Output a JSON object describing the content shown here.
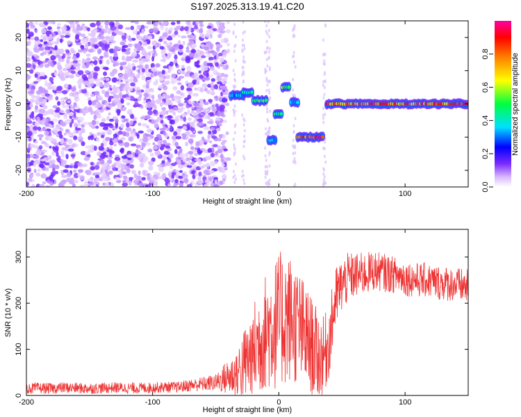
{
  "title": "S197.2025.313.19.41.C20",
  "chart_data": [
    {
      "type": "heatmap",
      "title": "S197.2025.313.19.41.C20",
      "xlabel": "Height of straight line (km)",
      "ylabel": "Frequency (Hz)",
      "xlim": [
        -200,
        150
      ],
      "ylim": [
        -25,
        25
      ],
      "xticks": [
        -200,
        -100,
        0,
        100
      ],
      "yticks": [
        -20,
        -10,
        0,
        10,
        20
      ],
      "colorbar": {
        "label": "Normalized spectral amplitude",
        "range": [
          0,
          1
        ],
        "ticks": [
          0.0,
          0.2,
          0.4,
          0.6,
          0.8
        ],
        "colors": [
          "#ffffff",
          "#d9b8ff",
          "#7a2bff",
          "#0000ff",
          "#00e0ff",
          "#00ff40",
          "#ffff00",
          "#ff8000",
          "#ff0000",
          "#ff00a0"
        ]
      },
      "noise_region": {
        "x": [
          -200,
          -40
        ],
        "intensity": 0.12
      },
      "features": [
        {
          "x": [
            -38,
            -28
          ],
          "freq": 2.5,
          "amp": 0.35
        },
        {
          "x": [
            -28,
            -20
          ],
          "freq": 3.5,
          "amp": 0.45
        },
        {
          "x": [
            -20,
            -10
          ],
          "freq": 1.0,
          "amp": 0.55
        },
        {
          "x": [
            -8,
            -3
          ],
          "freq": -11.0,
          "amp": 0.4
        },
        {
          "x": [
            -3,
            3
          ],
          "freq": -3.0,
          "amp": 0.5
        },
        {
          "x": [
            3,
            9
          ],
          "freq": 5.0,
          "amp": 0.6
        },
        {
          "x": [
            10,
            15
          ],
          "freq": 0.5,
          "amp": 0.4
        },
        {
          "x": [
            15,
            36
          ],
          "freq": -10.0,
          "amp": 0.95
        },
        {
          "x": [
            38,
            150
          ],
          "freq": 0.0,
          "amp": 0.9
        }
      ]
    },
    {
      "type": "line",
      "xlabel": "Height of straight line (km)",
      "ylabel": "SNR (10 * v/v)",
      "xlim": [
        -200,
        150
      ],
      "ylim": [
        0,
        360
      ],
      "xticks": [
        -200,
        -100,
        0,
        100
      ],
      "yticks": [
        0,
        100,
        200,
        300
      ],
      "color": "#ee3333",
      "x": [
        -200,
        -190,
        -180,
        -170,
        -160,
        -150,
        -140,
        -130,
        -120,
        -110,
        -100,
        -90,
        -80,
        -70,
        -60,
        -50,
        -45,
        -40,
        -35,
        -30,
        -25,
        -20,
        -15,
        -10,
        -5,
        0,
        5,
        10,
        15,
        20,
        25,
        30,
        35,
        40,
        45,
        50,
        55,
        60,
        65,
        70,
        75,
        80,
        85,
        90,
        95,
        100,
        105,
        110,
        115,
        120,
        125,
        130,
        135,
        140,
        145,
        150
      ],
      "values": [
        15,
        16,
        15,
        17,
        16,
        15,
        16,
        17,
        16,
        16,
        17,
        18,
        18,
        22,
        25,
        28,
        35,
        40,
        45,
        60,
        75,
        95,
        120,
        140,
        150,
        160,
        170,
        165,
        150,
        130,
        110,
        90,
        80,
        120,
        210,
        240,
        255,
        260,
        262,
        265,
        270,
        268,
        265,
        262,
        260,
        255,
        252,
        250,
        250,
        248,
        245,
        243,
        242,
        240,
        238,
        235
      ],
      "noise_amplitude": [
        12,
        12,
        12,
        12,
        12,
        12,
        12,
        12,
        12,
        12,
        12,
        12,
        12,
        14,
        16,
        18,
        30,
        40,
        50,
        70,
        90,
        110,
        120,
        130,
        140,
        150,
        150,
        140,
        130,
        120,
        110,
        100,
        90,
        80,
        70,
        60,
        55,
        50,
        48,
        46,
        44,
        42,
        42,
        40,
        40,
        40,
        38,
        38,
        38,
        38,
        38,
        38,
        38,
        38,
        38,
        38
      ]
    }
  ]
}
